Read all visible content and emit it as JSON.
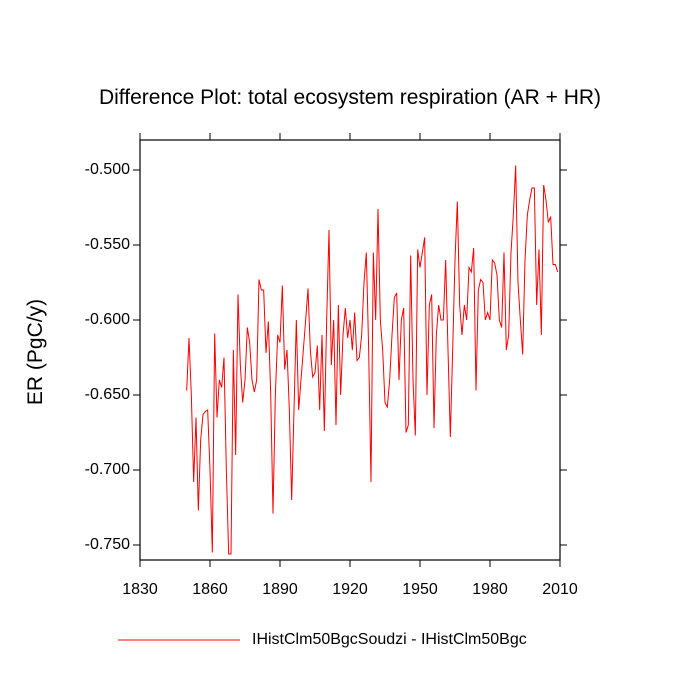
{
  "chart_data": {
    "type": "line",
    "title": "Difference Plot: total ecosystem respiration (AR + HR)",
    "y_label": "ER  (PgC/y)",
    "x": [
      1850,
      1851,
      1852,
      1853,
      1854,
      1855,
      1856,
      1857,
      1858,
      1859,
      1860,
      1861,
      1862,
      1863,
      1864,
      1865,
      1866,
      1867,
      1868,
      1869,
      1870,
      1871,
      1872,
      1873,
      1874,
      1875,
      1876,
      1877,
      1878,
      1879,
      1880,
      1881,
      1882,
      1883,
      1884,
      1885,
      1886,
      1887,
      1888,
      1889,
      1890,
      1891,
      1892,
      1893,
      1894,
      1895,
      1896,
      1897,
      1898,
      1899,
      1900,
      1901,
      1902,
      1903,
      1904,
      1905,
      1906,
      1907,
      1908,
      1909,
      1910,
      1911,
      1912,
      1913,
      1914,
      1915,
      1916,
      1917,
      1918,
      1919,
      1920,
      1921,
      1922,
      1923,
      1924,
      1925,
      1926,
      1927,
      1928,
      1929,
      1930,
      1931,
      1932,
      1933,
      1934,
      1935,
      1936,
      1937,
      1938,
      1939,
      1940,
      1941,
      1942,
      1943,
      1944,
      1945,
      1946,
      1947,
      1948,
      1949,
      1950,
      1951,
      1952,
      1953,
      1954,
      1955,
      1956,
      1957,
      1958,
      1959,
      1960,
      1961,
      1962,
      1963,
      1964,
      1965,
      1966,
      1967,
      1968,
      1969,
      1970,
      1971,
      1972,
      1973,
      1974,
      1975,
      1976,
      1977,
      1978,
      1979,
      1980,
      1981,
      1982,
      1983,
      1984,
      1985,
      1986,
      1987,
      1988,
      1989,
      1990,
      1991,
      1992,
      1993,
      1994,
      1995,
      1996,
      1997,
      1998,
      1999,
      2000,
      2001,
      2002,
      2003,
      2004,
      2005,
      2006,
      2007,
      2008,
      2009
    ],
    "series": [
      {
        "name": "IHistClm50BgcSoudzi - IHistClm50Bgc",
        "color": "#ff0000",
        "values": [
          -0.647,
          -0.612,
          -0.65,
          -0.708,
          -0.665,
          -0.727,
          -0.68,
          -0.663,
          -0.661,
          -0.66,
          -0.7,
          -0.755,
          -0.609,
          -0.665,
          -0.64,
          -0.645,
          -0.625,
          -0.7,
          -0.756,
          -0.756,
          -0.62,
          -0.69,
          -0.583,
          -0.63,
          -0.655,
          -0.64,
          -0.605,
          -0.615,
          -0.64,
          -0.648,
          -0.64,
          -0.573,
          -0.58,
          -0.58,
          -0.622,
          -0.601,
          -0.648,
          -0.729,
          -0.65,
          -0.61,
          -0.615,
          -0.577,
          -0.633,
          -0.62,
          -0.66,
          -0.72,
          -0.66,
          -0.6,
          -0.66,
          -0.64,
          -0.62,
          -0.6,
          -0.579,
          -0.62,
          -0.638,
          -0.635,
          -0.617,
          -0.66,
          -0.61,
          -0.674,
          -0.6,
          -0.54,
          -0.63,
          -0.6,
          -0.67,
          -0.59,
          -0.65,
          -0.61,
          -0.592,
          -0.612,
          -0.6,
          -0.62,
          -0.595,
          -0.627,
          -0.625,
          -0.61,
          -0.575,
          -0.555,
          -0.62,
          -0.708,
          -0.555,
          -0.6,
          -0.526,
          -0.6,
          -0.62,
          -0.655,
          -0.658,
          -0.64,
          -0.61,
          -0.585,
          -0.582,
          -0.64,
          -0.6,
          -0.592,
          -0.675,
          -0.67,
          -0.557,
          -0.64,
          -0.677,
          -0.553,
          -0.565,
          -0.555,
          -0.545,
          -0.65,
          -0.59,
          -0.583,
          -0.672,
          -0.61,
          -0.59,
          -0.6,
          -0.6,
          -0.56,
          -0.62,
          -0.678,
          -0.62,
          -0.56,
          -0.521,
          -0.59,
          -0.61,
          -0.59,
          -0.6,
          -0.565,
          -0.568,
          -0.552,
          -0.647,
          -0.58,
          -0.573,
          -0.575,
          -0.6,
          -0.595,
          -0.6,
          -0.56,
          -0.562,
          -0.57,
          -0.6,
          -0.605,
          -0.555,
          -0.62,
          -0.61,
          -0.555,
          -0.53,
          -0.497,
          -0.575,
          -0.6,
          -0.623,
          -0.56,
          -0.53,
          -0.52,
          -0.512,
          -0.512,
          -0.59,
          -0.553,
          -0.61,
          -0.51,
          -0.52,
          -0.535,
          -0.531,
          -0.563,
          -0.563,
          -0.568
        ]
      }
    ],
    "xlim": [
      1830,
      2010
    ],
    "xticks": [
      1830,
      1860,
      1890,
      1920,
      1950,
      1980,
      2010
    ],
    "ylim": [
      -0.76,
      -0.48
    ],
    "yticks": [
      {
        "value": -0.5,
        "label": "-0.500"
      },
      {
        "value": -0.55,
        "label": "-0.550"
      },
      {
        "value": -0.6,
        "label": "-0.600"
      },
      {
        "value": -0.65,
        "label": "-0.650"
      },
      {
        "value": -0.7,
        "label": "-0.700"
      },
      {
        "value": -0.75,
        "label": "-0.750"
      }
    ],
    "legend": "bottom"
  }
}
